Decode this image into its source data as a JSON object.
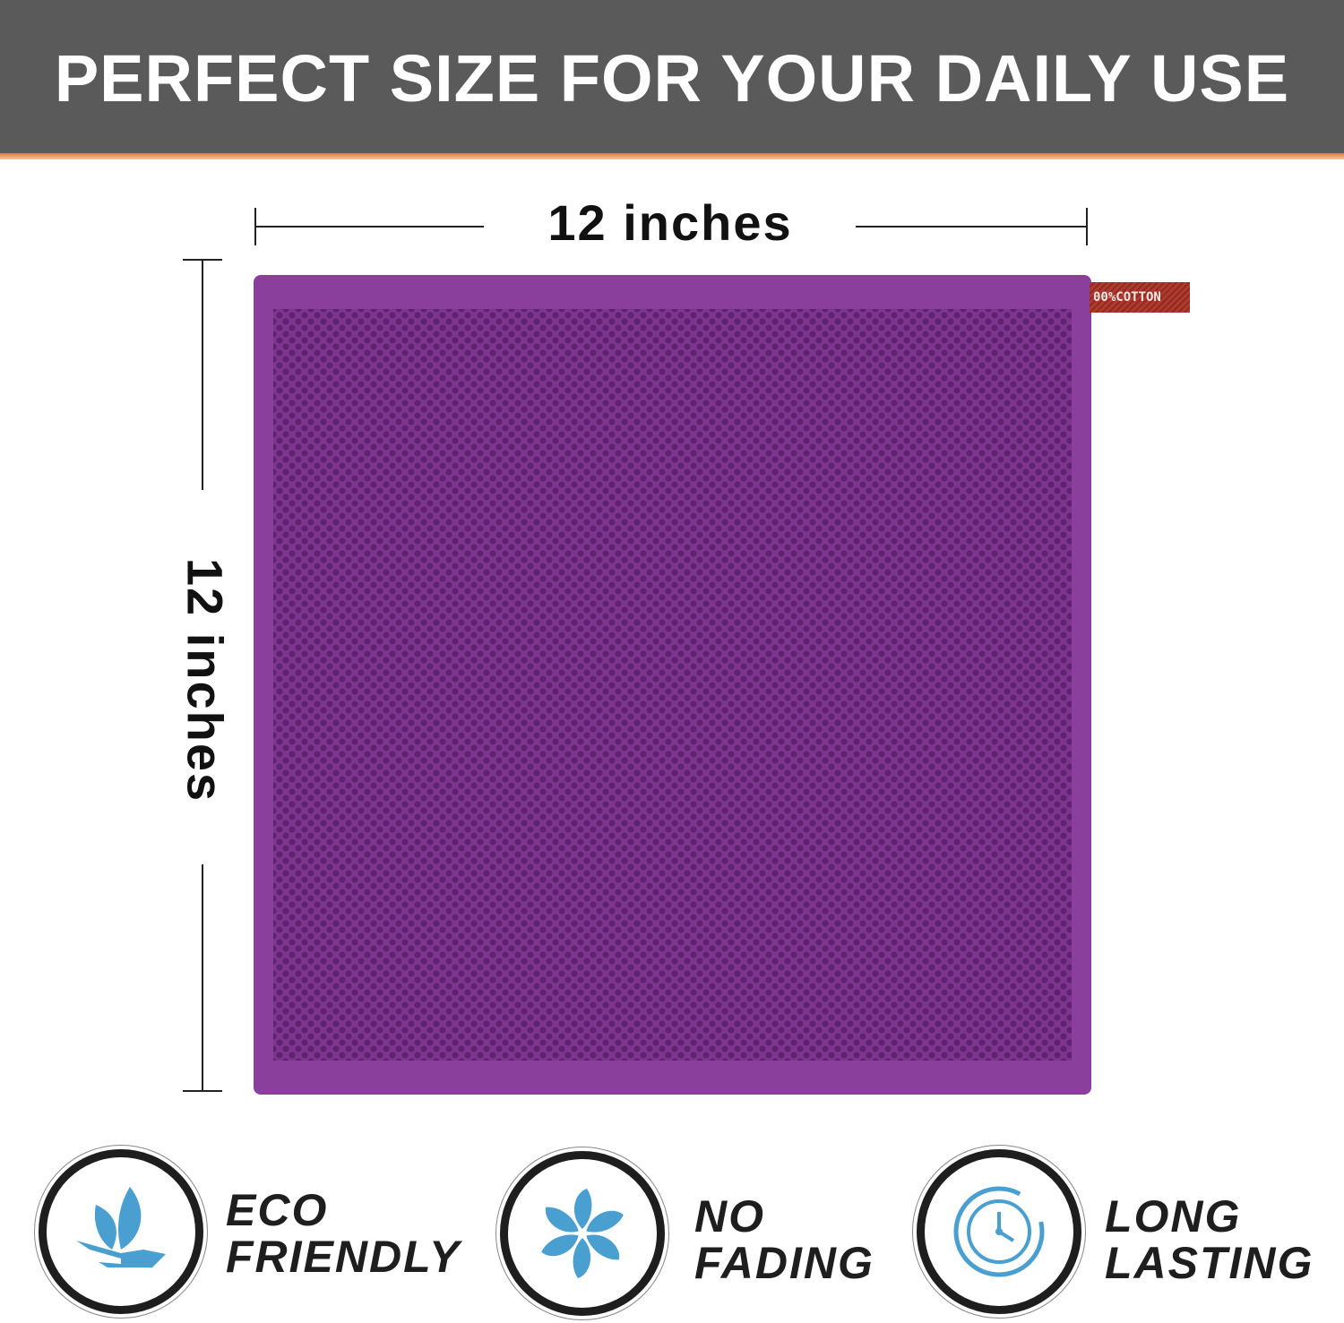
{
  "banner": {
    "title": "PERFECT SIZE FOR YOUR DAILY USE",
    "background": "#5a5a5a",
    "accent": "#e07a3a"
  },
  "dimensions": {
    "width_label": "12 inches",
    "height_label": "12 inches"
  },
  "product": {
    "color": "#8b3f9c",
    "tag_text": "00%COTTON"
  },
  "features": [
    {
      "icon": "leaf-hand-icon",
      "line1": "ECO",
      "line2": "FRIENDLY"
    },
    {
      "icon": "pinwheel-icon",
      "line1": "NO",
      "line2": "FADING"
    },
    {
      "icon": "clock-cycle-icon",
      "line1": "LONG",
      "line2": "LASTING"
    }
  ],
  "icon_color": "#4a9fd1"
}
